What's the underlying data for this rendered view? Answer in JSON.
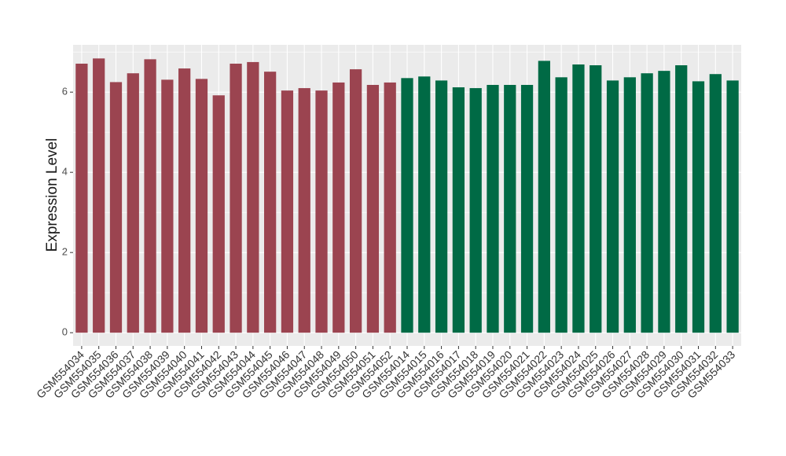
{
  "chart_data": {
    "type": "bar",
    "y_label": "Expression Level",
    "categories": [
      "GSM554034",
      "GSM554035",
      "GSM554036",
      "GSM554037",
      "GSM554038",
      "GSM554039",
      "GSM554040",
      "GSM554041",
      "GSM554042",
      "GSM554043",
      "GSM554044",
      "GSM554045",
      "GSM554046",
      "GSM554047",
      "GSM554048",
      "GSM554049",
      "GSM554050",
      "GSM554051",
      "GSM554052",
      "GSM554014",
      "GSM554015",
      "GSM554016",
      "GSM554017",
      "GSM554018",
      "GSM554019",
      "GSM554020",
      "GSM554021",
      "GSM554022",
      "GSM554023",
      "GSM554024",
      "GSM554025",
      "GSM554026",
      "GSM554027",
      "GSM554028",
      "GSM554029",
      "GSM554030",
      "GSM554031",
      "GSM554032",
      "GSM554033"
    ],
    "values": [
      6.71,
      6.84,
      6.25,
      6.47,
      6.82,
      6.31,
      6.59,
      6.33,
      5.92,
      6.71,
      6.75,
      6.51,
      6.04,
      6.1,
      6.04,
      6.24,
      6.57,
      6.18,
      6.24,
      6.35,
      6.39,
      6.29,
      6.12,
      6.1,
      6.18,
      6.18,
      6.18,
      6.78,
      6.37,
      6.69,
      6.67,
      6.29,
      6.37,
      6.47,
      6.53,
      6.67,
      6.27,
      6.45,
      6.29
    ],
    "colors": [
      "#9b4450",
      "#9b4450",
      "#9b4450",
      "#9b4450",
      "#9b4450",
      "#9b4450",
      "#9b4450",
      "#9b4450",
      "#9b4450",
      "#9b4450",
      "#9b4450",
      "#9b4450",
      "#9b4450",
      "#9b4450",
      "#9b4450",
      "#9b4450",
      "#9b4450",
      "#9b4450",
      "#9b4450",
      "#006a45",
      "#006a45",
      "#006a45",
      "#006a45",
      "#006a45",
      "#006a45",
      "#006a45",
      "#006a45",
      "#006a45",
      "#006a45",
      "#006a45",
      "#006a45",
      "#006a45",
      "#006a45",
      "#006a45",
      "#006a45",
      "#006a45",
      "#006a45",
      "#006a45",
      "#006a45"
    ],
    "ylim": [
      -0.33,
      7.18
    ],
    "yticks": [
      0,
      2,
      4,
      6
    ],
    "grid": true
  }
}
